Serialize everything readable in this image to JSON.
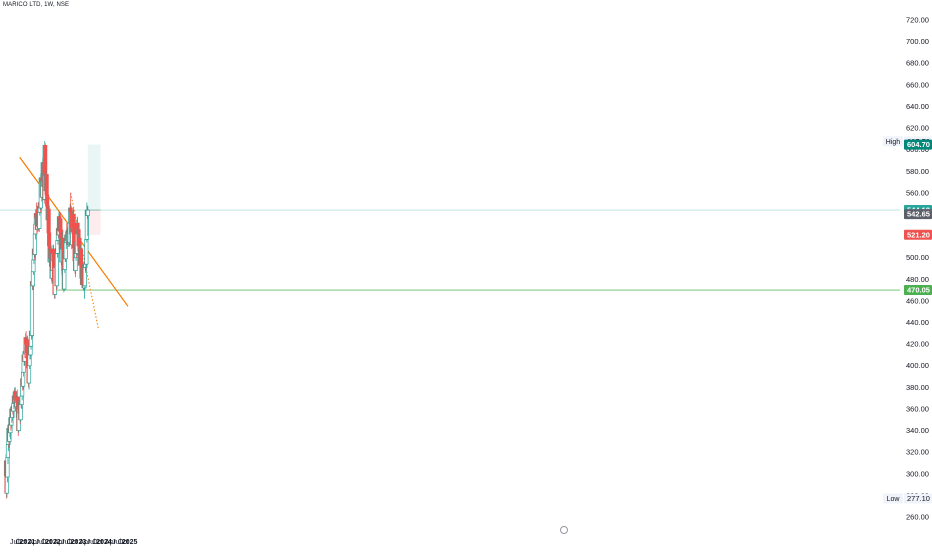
{
  "header": {
    "symbol": "MARICO LTD, 1W, NSE"
  },
  "colors": {
    "up": "#26a69a",
    "down": "#ef5350",
    "trendline": "#f57c00",
    "support": "#66bb6a",
    "target_zone": "#e0f2f1",
    "stop_zone": "#fde7e9",
    "axis_text": "#131722",
    "background": "#ffffff"
  },
  "chart_data": {
    "type": "candlestick",
    "title": "",
    "xlabel": "",
    "ylabel": "",
    "ylim": [
      255,
      730
    ],
    "grid": false,
    "y_ticks": [
      "720.00",
      "700.00",
      "680.00",
      "660.00",
      "640.00",
      "620.00",
      "600.00",
      "580.00",
      "560.00",
      "540.00",
      "520.00",
      "500.00",
      "480.00",
      "460.00",
      "440.00",
      "420.00",
      "400.00",
      "380.00",
      "360.00",
      "340.00",
      "320.00",
      "300.00",
      "280.00",
      "260.00"
    ],
    "x_ticks": [
      "Jul",
      "Oct",
      "2021",
      "Apr",
      "Jul",
      "Oct",
      "2022",
      "Apr",
      "Jul",
      "Oct",
      "2023",
      "Apr",
      "Jul",
      "Oct",
      "2024",
      "Apr",
      "Jul",
      "Oct",
      "2025"
    ],
    "price_labels": [
      {
        "label": "High",
        "value": "607.70",
        "style": "plain"
      },
      {
        "label": "",
        "value": "604.70",
        "style": "target"
      },
      {
        "label": "",
        "value": "544.10",
        "style": "current"
      },
      {
        "label": "",
        "value": "542.65",
        "style": "muted"
      },
      {
        "label": "",
        "value": "521.20",
        "style": "stop"
      },
      {
        "label": "",
        "value": "470.05",
        "style": "support"
      },
      {
        "label": "Low",
        "value": "277.10",
        "style": "plain"
      }
    ],
    "drawings": {
      "trendline": {
        "start": [
          "2020-09-14",
          593
        ],
        "end": [
          "2024-12-09",
          455
        ]
      },
      "dotted_trendline": {
        "start": [
          "2022-09-12",
          560
        ],
        "end": [
          "2023-10-16",
          433
        ]
      },
      "support_line": {
        "start": [
          "2022-02-14",
          470.05
        ]
      },
      "position": {
        "start": "2023-05-15",
        "end": "2023-11-13",
        "entry": 544.1,
        "target": 604.7,
        "stop": 521.2
      }
    },
    "ohlc": [
      [
        "2020-03-02",
        298,
        318,
        284,
        312
      ],
      [
        "2020-03-09",
        312,
        316,
        277,
        282
      ],
      [
        "2020-03-16",
        282,
        300,
        278,
        297
      ],
      [
        "2020-03-23",
        297,
        317,
        292,
        315
      ],
      [
        "2020-03-30",
        315,
        332,
        309,
        327
      ],
      [
        "2020-04-06",
        327,
        346,
        321,
        342
      ],
      [
        "2020-04-13",
        342,
        345,
        324,
        330
      ],
      [
        "2020-04-20",
        330,
        350,
        326,
        345
      ],
      [
        "2020-04-27",
        345,
        349,
        334,
        338
      ],
      [
        "2020-05-04",
        338,
        356,
        332,
        352
      ],
      [
        "2020-05-11",
        352,
        358,
        340,
        345
      ],
      [
        "2020-05-18",
        345,
        363,
        342,
        360
      ],
      [
        "2020-05-25",
        360,
        364,
        347,
        352
      ],
      [
        "2020-06-01",
        352,
        366,
        349,
        362
      ],
      [
        "2020-06-08",
        362,
        370,
        355,
        358
      ],
      [
        "2020-06-15",
        358,
        368,
        352,
        365
      ],
      [
        "2020-06-22",
        365,
        376,
        360,
        372
      ],
      [
        "2020-06-29",
        372,
        378,
        362,
        366
      ],
      [
        "2020-07-06",
        366,
        380,
        364,
        376
      ],
      [
        "2020-07-13",
        376,
        380,
        366,
        369
      ],
      [
        "2020-07-20",
        369,
        375,
        358,
        362
      ],
      [
        "2020-07-27",
        362,
        370,
        352,
        366
      ],
      [
        "2020-08-03",
        366,
        375,
        362,
        371
      ],
      [
        "2020-08-10",
        371,
        378,
        364,
        368
      ],
      [
        "2020-08-17",
        368,
        372,
        355,
        358
      ],
      [
        "2020-08-24",
        358,
        362,
        335,
        340
      ],
      [
        "2020-08-31",
        340,
        366,
        338,
        363
      ],
      [
        "2020-09-07",
        363,
        371,
        356,
        360
      ],
      [
        "2020-09-14",
        360,
        367,
        353,
        356
      ],
      [
        "2020-09-21",
        356,
        362,
        346,
        350
      ],
      [
        "2020-09-28",
        350,
        371,
        348,
        368
      ],
      [
        "2020-10-05",
        368,
        378,
        361,
        364
      ],
      [
        "2020-10-12",
        364,
        376,
        360,
        372
      ],
      [
        "2020-10-19",
        372,
        392,
        368,
        388
      ],
      [
        "2020-10-26",
        388,
        393,
        377,
        381
      ],
      [
        "2020-11-02",
        381,
        398,
        378,
        394
      ],
      [
        "2020-11-09",
        394,
        414,
        390,
        410
      ],
      [
        "2020-11-16",
        410,
        420,
        400,
        404
      ],
      [
        "2020-11-23",
        404,
        418,
        400,
        413
      ],
      [
        "2020-11-30",
        413,
        422,
        407,
        411
      ],
      [
        "2020-12-07",
        411,
        430,
        407,
        426
      ],
      [
        "2020-12-14",
        426,
        432,
        416,
        420
      ],
      [
        "2020-12-21",
        420,
        426,
        404,
        408
      ],
      [
        "2020-12-28",
        408,
        427,
        405,
        424
      ],
      [
        "2021-01-04",
        424,
        428,
        409,
        412
      ],
      [
        "2021-01-11",
        412,
        416,
        394,
        398
      ],
      [
        "2021-01-18",
        398,
        402,
        380,
        384
      ],
      [
        "2021-01-25",
        384,
        404,
        378,
        400
      ],
      [
        "2021-02-01",
        400,
        419,
        397,
        415
      ],
      [
        "2021-02-08",
        415,
        423,
        406,
        410
      ],
      [
        "2021-02-15",
        410,
        421,
        406,
        418
      ],
      [
        "2021-02-22",
        418,
        436,
        415,
        432
      ],
      [
        "2021-03-01",
        432,
        442,
        424,
        428
      ],
      [
        "2021-03-08",
        428,
        482,
        426,
        478
      ],
      [
        "2021-03-15",
        478,
        488,
        470,
        474
      ],
      [
        "2021-03-22",
        474,
        491,
        470,
        487
      ],
      [
        "2021-03-29",
        487,
        502,
        484,
        498
      ],
      [
        "2021-04-05",
        498,
        512,
        494,
        508
      ],
      [
        "2021-04-12",
        508,
        518,
        498,
        503
      ],
      [
        "2021-04-19",
        503,
        526,
        500,
        522
      ],
      [
        "2021-04-26",
        522,
        536,
        517,
        531
      ],
      [
        "2021-05-03",
        531,
        545,
        528,
        541
      ],
      [
        "2021-05-10",
        541,
        551,
        532,
        537
      ],
      [
        "2021-05-17",
        537,
        542,
        522,
        526
      ],
      [
        "2021-05-24",
        526,
        548,
        524,
        544
      ],
      [
        "2021-05-31",
        544,
        548,
        525,
        529
      ],
      [
        "2021-06-07",
        529,
        544,
        526,
        540
      ],
      [
        "2021-06-14",
        540,
        544,
        524,
        527
      ],
      [
        "2021-06-21",
        527,
        546,
        524,
        542
      ],
      [
        "2021-06-28",
        542,
        555,
        539,
        551
      ],
      [
        "2021-07-05",
        551,
        560,
        542,
        546
      ],
      [
        "2021-07-12",
        546,
        578,
        544,
        574
      ],
      [
        "2021-07-19",
        574,
        588,
        566,
        570
      ],
      [
        "2021-07-26",
        570,
        574,
        552,
        556
      ],
      [
        "2021-08-02",
        556,
        574,
        553,
        571
      ],
      [
        "2021-08-09",
        571,
        592,
        568,
        588
      ],
      [
        "2021-08-16",
        588,
        594,
        562,
        566
      ],
      [
        "2021-08-23",
        566,
        582,
        561,
        578
      ],
      [
        "2021-08-30",
        578,
        584,
        550,
        554
      ],
      [
        "2021-09-06",
        554,
        608,
        553,
        604
      ],
      [
        "2021-09-13",
        604,
        606,
        572,
        576
      ],
      [
        "2021-09-20",
        576,
        584,
        559,
        562
      ],
      [
        "2021-09-27",
        562,
        580,
        558,
        577
      ],
      [
        "2021-10-04",
        577,
        580,
        555,
        558
      ],
      [
        "2021-10-11",
        558,
        562,
        545,
        548
      ],
      [
        "2021-10-18",
        548,
        552,
        532,
        535
      ],
      [
        "2021-10-25",
        535,
        549,
        531,
        545
      ],
      [
        "2021-11-01",
        545,
        550,
        520,
        523
      ],
      [
        "2021-11-08",
        523,
        527,
        508,
        511
      ],
      [
        "2021-11-15",
        511,
        514,
        494,
        496
      ],
      [
        "2021-11-22",
        496,
        512,
        493,
        508
      ],
      [
        "2021-11-29",
        508,
        512,
        496,
        499
      ],
      [
        "2021-12-06",
        499,
        510,
        488,
        492
      ],
      [
        "2021-12-13",
        492,
        496,
        478,
        481
      ],
      [
        "2021-12-20",
        481,
        492,
        476,
        488
      ],
      [
        "2021-12-27",
        488,
        508,
        486,
        504
      ],
      [
        "2022-01-03",
        504,
        512,
        498,
        508
      ],
      [
        "2022-01-10",
        508,
        512,
        494,
        497
      ],
      [
        "2022-01-17",
        497,
        500,
        476,
        479
      ],
      [
        "2022-01-24",
        479,
        482,
        462,
        466
      ],
      [
        "2022-01-31",
        466,
        495,
        462,
        491
      ],
      [
        "2022-02-07",
        491,
        509,
        488,
        504
      ],
      [
        "2022-02-14",
        504,
        509,
        489,
        492
      ],
      [
        "2022-02-21",
        492,
        496,
        470,
        474
      ],
      [
        "2022-02-28",
        474,
        508,
        471,
        504
      ],
      [
        "2022-03-07",
        504,
        520,
        500,
        516
      ],
      [
        "2022-03-14",
        516,
        532,
        512,
        527
      ],
      [
        "2022-03-21",
        527,
        534,
        518,
        521
      ],
      [
        "2022-03-28",
        521,
        542,
        516,
        538
      ],
      [
        "2022-04-04",
        538,
        543,
        522,
        525
      ],
      [
        "2022-04-11",
        525,
        540,
        522,
        536
      ],
      [
        "2022-04-18",
        536,
        542,
        520,
        524
      ],
      [
        "2022-04-25",
        524,
        528,
        505,
        508
      ],
      [
        "2022-05-02",
        508,
        512,
        493,
        496
      ],
      [
        "2022-05-09",
        496,
        512,
        484,
        508
      ],
      [
        "2022-05-16",
        508,
        524,
        502,
        518
      ],
      [
        "2022-05-23",
        518,
        526,
        505,
        509
      ],
      [
        "2022-05-30",
        509,
        512,
        485,
        488
      ],
      [
        "2022-06-06",
        488,
        491,
        468,
        471
      ],
      [
        "2022-06-13",
        471,
        492,
        469,
        489
      ],
      [
        "2022-06-20",
        489,
        508,
        486,
        504
      ],
      [
        "2022-06-27",
        504,
        514,
        496,
        499
      ],
      [
        "2022-07-04",
        499,
        518,
        496,
        514
      ],
      [
        "2022-07-11",
        514,
        526,
        508,
        521
      ],
      [
        "2022-07-18",
        521,
        532,
        512,
        516
      ],
      [
        "2022-07-25",
        516,
        528,
        512,
        524
      ],
      [
        "2022-08-01",
        524,
        532,
        512,
        515
      ],
      [
        "2022-08-08",
        515,
        528,
        510,
        524
      ],
      [
        "2022-08-15",
        524,
        538,
        518,
        522
      ],
      [
        "2022-08-22",
        522,
        532,
        510,
        514
      ],
      [
        "2022-08-29",
        514,
        536,
        511,
        532
      ],
      [
        "2022-09-05",
        532,
        550,
        529,
        546
      ],
      [
        "2022-09-12",
        546,
        560,
        538,
        542
      ],
      [
        "2022-09-19",
        542,
        548,
        518,
        522
      ],
      [
        "2022-09-26",
        522,
        530,
        508,
        512
      ],
      [
        "2022-10-03",
        512,
        532,
        509,
        527
      ],
      [
        "2022-10-10",
        527,
        538,
        520,
        524
      ],
      [
        "2022-10-17",
        524,
        544,
        520,
        540
      ],
      [
        "2022-10-24",
        540,
        546,
        518,
        522
      ],
      [
        "2022-10-31",
        522,
        528,
        506,
        509
      ],
      [
        "2022-11-07",
        509,
        515,
        494,
        497
      ],
      [
        "2022-11-14",
        497,
        508,
        485,
        488
      ],
      [
        "2022-11-21",
        488,
        504,
        482,
        500
      ],
      [
        "2022-11-28",
        500,
        518,
        497,
        514
      ],
      [
        "2022-12-05",
        514,
        522,
        500,
        504
      ],
      [
        "2022-12-12",
        504,
        536,
        502,
        532
      ],
      [
        "2022-12-19",
        532,
        538,
        518,
        522
      ],
      [
        "2022-12-26",
        522,
        529,
        510,
        526
      ],
      [
        "2023-01-02",
        526,
        528,
        508,
        511
      ],
      [
        "2023-01-09",
        511,
        522,
        504,
        518
      ],
      [
        "2023-01-16",
        518,
        521,
        502,
        506
      ],
      [
        "2023-01-23",
        506,
        509,
        490,
        493
      ],
      [
        "2023-01-30",
        493,
        512,
        490,
        508
      ],
      [
        "2023-02-06",
        508,
        512,
        490,
        494
      ],
      [
        "2023-02-13",
        494,
        500,
        478,
        481
      ],
      [
        "2023-02-20",
        481,
        485,
        472,
        475
      ],
      [
        "2023-02-27",
        475,
        494,
        472,
        490
      ],
      [
        "2023-03-06",
        490,
        494,
        472,
        475
      ],
      [
        "2023-03-13",
        475,
        486,
        470,
        480
      ],
      [
        "2023-03-20",
        480,
        484,
        469,
        472
      ],
      [
        "2023-03-27",
        472,
        478,
        462,
        474
      ],
      [
        "2023-04-03",
        474,
        495,
        470,
        491
      ],
      [
        "2023-04-10",
        491,
        500,
        486,
        496
      ],
      [
        "2023-04-17",
        496,
        499,
        488,
        494
      ],
      [
        "2023-04-24",
        494,
        520,
        491,
        517
      ],
      [
        "2023-05-01",
        517,
        551,
        514,
        544
      ],
      [
        "2023-05-08",
        544,
        548,
        536,
        539
      ],
      [
        "2023-05-15",
        539,
        548,
        520,
        544
      ]
    ]
  }
}
